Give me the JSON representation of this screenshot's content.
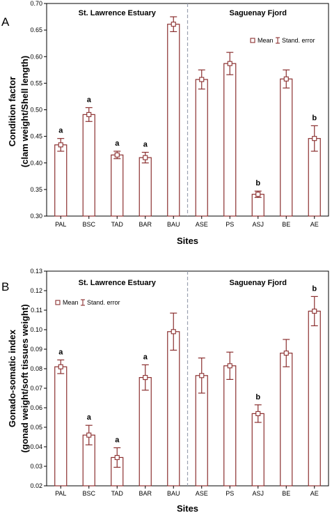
{
  "chart_data": [
    {
      "type": "bar",
      "panel": "A",
      "categories": [
        "PAL",
        "BSC",
        "TAD",
        "BAR",
        "BAU",
        "ASE",
        "PS",
        "ASJ",
        "BE",
        "AE"
      ],
      "values": [
        0.434,
        0.491,
        0.415,
        0.41,
        0.661,
        0.557,
        0.587,
        0.341,
        0.558,
        0.446
      ],
      "errors": [
        0.012,
        0.013,
        0.007,
        0.01,
        0.014,
        0.018,
        0.021,
        0.006,
        0.017,
        0.024
      ],
      "significance": [
        "a",
        "a",
        "a",
        "a",
        "",
        "",
        "",
        "b",
        "",
        "b"
      ],
      "ylabel": [
        "Condition factor",
        "(clam weight/Shell length)"
      ],
      "xlabel": "Sites",
      "ylim": [
        0.3,
        0.7
      ],
      "yticks": [
        "0.30",
        "0.35",
        "0.40",
        "0.45",
        "0.50",
        "0.55",
        "0.60",
        "0.65",
        "0.70"
      ],
      "regions": [
        "St. Lawrence Estuary",
        "Saguenay Fjord"
      ],
      "legend": {
        "mean": "Mean",
        "error": "Stand. error",
        "position": "top-right"
      }
    },
    {
      "type": "bar",
      "panel": "B",
      "categories": [
        "PAL",
        "BSC",
        "TAD",
        "BAR",
        "BAU",
        "ASE",
        "PS",
        "ASJ",
        "BE",
        "AE"
      ],
      "values": [
        0.081,
        0.046,
        0.0345,
        0.0755,
        0.099,
        0.0765,
        0.0815,
        0.057,
        0.088,
        0.1095
      ],
      "errors": [
        0.0035,
        0.005,
        0.005,
        0.0065,
        0.0095,
        0.009,
        0.007,
        0.0045,
        0.007,
        0.0075
      ],
      "significance": [
        "a",
        "a",
        "a",
        "a",
        "",
        "",
        "",
        "b",
        "",
        "b"
      ],
      "ylabel": [
        "Gonado-somatic index",
        "(gonad weight/soft tissues weight)"
      ],
      "xlabel": "Sites",
      "ylim": [
        0.02,
        0.13
      ],
      "yticks": [
        "0.02",
        "0.03",
        "0.04",
        "0.05",
        "0.06",
        "0.07",
        "0.08",
        "0.09",
        "0.10",
        "0.11",
        "0.12",
        "0.13"
      ],
      "regions": [
        "St. Lawrence Estuary",
        "Saguenay Fjord"
      ],
      "legend": {
        "mean": "Mean",
        "error": "Stand. error",
        "position": "top-left"
      }
    }
  ],
  "colors": {
    "bar": "#8a2e2e",
    "divider": "#9aa0b0",
    "axis": "#000000"
  }
}
